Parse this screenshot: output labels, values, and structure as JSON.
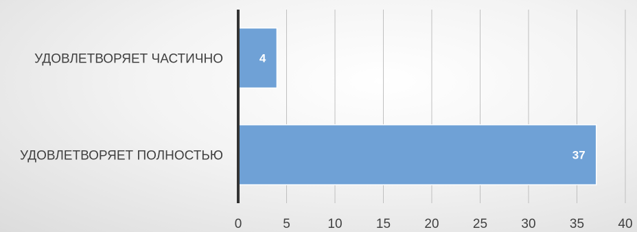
{
  "chart_data": {
    "type": "bar",
    "orientation": "horizontal",
    "categories": [
      "УДОВЛЕТВОРЯЕТ ЧАСТИЧНО",
      "УДОВЛЕТВОРЯЕТ ПОЛНОСТЬЮ"
    ],
    "values": [
      4,
      37
    ],
    "data_labels": [
      "4",
      "37"
    ],
    "xlim": [
      0,
      40
    ],
    "xticks": [
      0,
      5,
      10,
      15,
      20,
      25,
      30,
      35,
      40
    ],
    "xtick_labels": [
      "0",
      "5",
      "10",
      "15",
      "20",
      "25",
      "30",
      "35",
      "40"
    ],
    "grid": true,
    "legend": "none",
    "colors": {
      "bar_fill": "#6fa1d6",
      "bar_stroke": "#ffffff",
      "gridline": "#bfbfbf",
      "axis": "#333333",
      "text": "#404040",
      "data_label": "#ffffff"
    }
  }
}
